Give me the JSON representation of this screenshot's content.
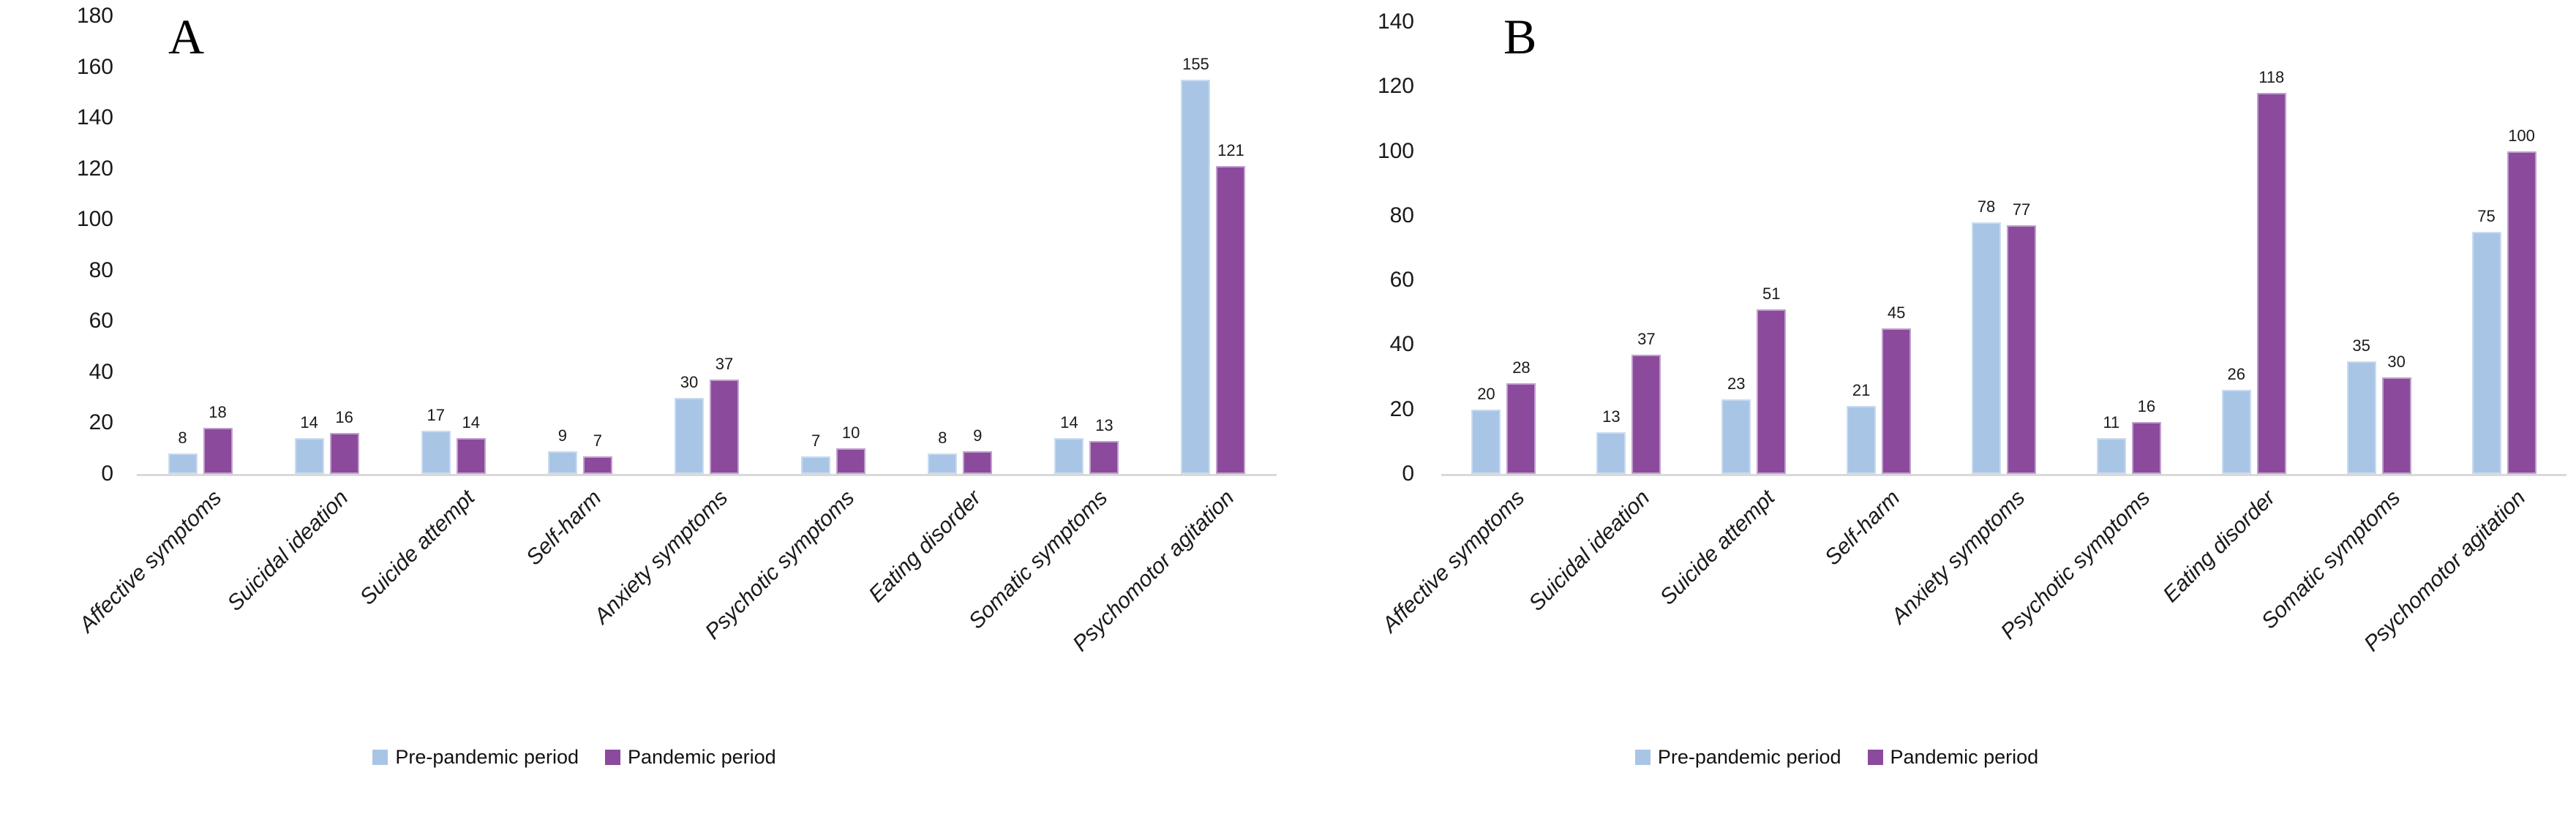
{
  "colors": {
    "background": "#ffffff",
    "axis_line": "#d9d9d9",
    "text": "#1a1a1a",
    "pre_pandemic": "#a9c5e6",
    "pandemic": "#8c4a9c"
  },
  "chart_data": [
    {
      "type": "bar",
      "panel_label": "A",
      "categories": [
        "Affective symptoms",
        "Suicidal ideation",
        "Suicide attempt",
        "Self-harm",
        "Anxiety symptoms",
        "Psychotic symptoms",
        "Eating disorder",
        "Somatic symptoms",
        "Psychomotor agitation"
      ],
      "series": [
        {
          "name": "Pre-pandemic period",
          "color": "#a9c5e6",
          "border": "#cadcf0",
          "values": [
            8,
            14,
            17,
            9,
            30,
            7,
            8,
            14,
            155
          ]
        },
        {
          "name": "Pandemic period",
          "color": "#8c4a9c",
          "border": "#c0a0ce",
          "values": [
            18,
            16,
            14,
            7,
            37,
            10,
            9,
            13,
            121
          ]
        }
      ],
      "ylim": [
        0,
        180
      ],
      "ytick_step": 20,
      "grid": false,
      "legend_position": "bottom",
      "bar_value_labels": true
    },
    {
      "type": "bar",
      "panel_label": "B",
      "categories": [
        "Affective symptoms",
        "Suicidal ideation",
        "Suicide attempt",
        "Self-harm",
        "Anxiety symptoms",
        "Psychotic symptoms",
        "Eating disorder",
        "Somatic symptoms",
        "Psychomotor agitation"
      ],
      "series": [
        {
          "name": "Pre-pandemic period",
          "color": "#a9c5e6",
          "border": "#cadcf0",
          "values": [
            20,
            13,
            23,
            21,
            78,
            11,
            26,
            35,
            75
          ]
        },
        {
          "name": "Pandemic period",
          "color": "#8c4a9c",
          "border": "#c0a0ce",
          "values": [
            28,
            37,
            51,
            45,
            77,
            16,
            118,
            30,
            100
          ]
        }
      ],
      "ylim": [
        0,
        140
      ],
      "ytick_step": 20,
      "grid": false,
      "legend_position": "bottom",
      "bar_value_labels": true
    }
  ]
}
